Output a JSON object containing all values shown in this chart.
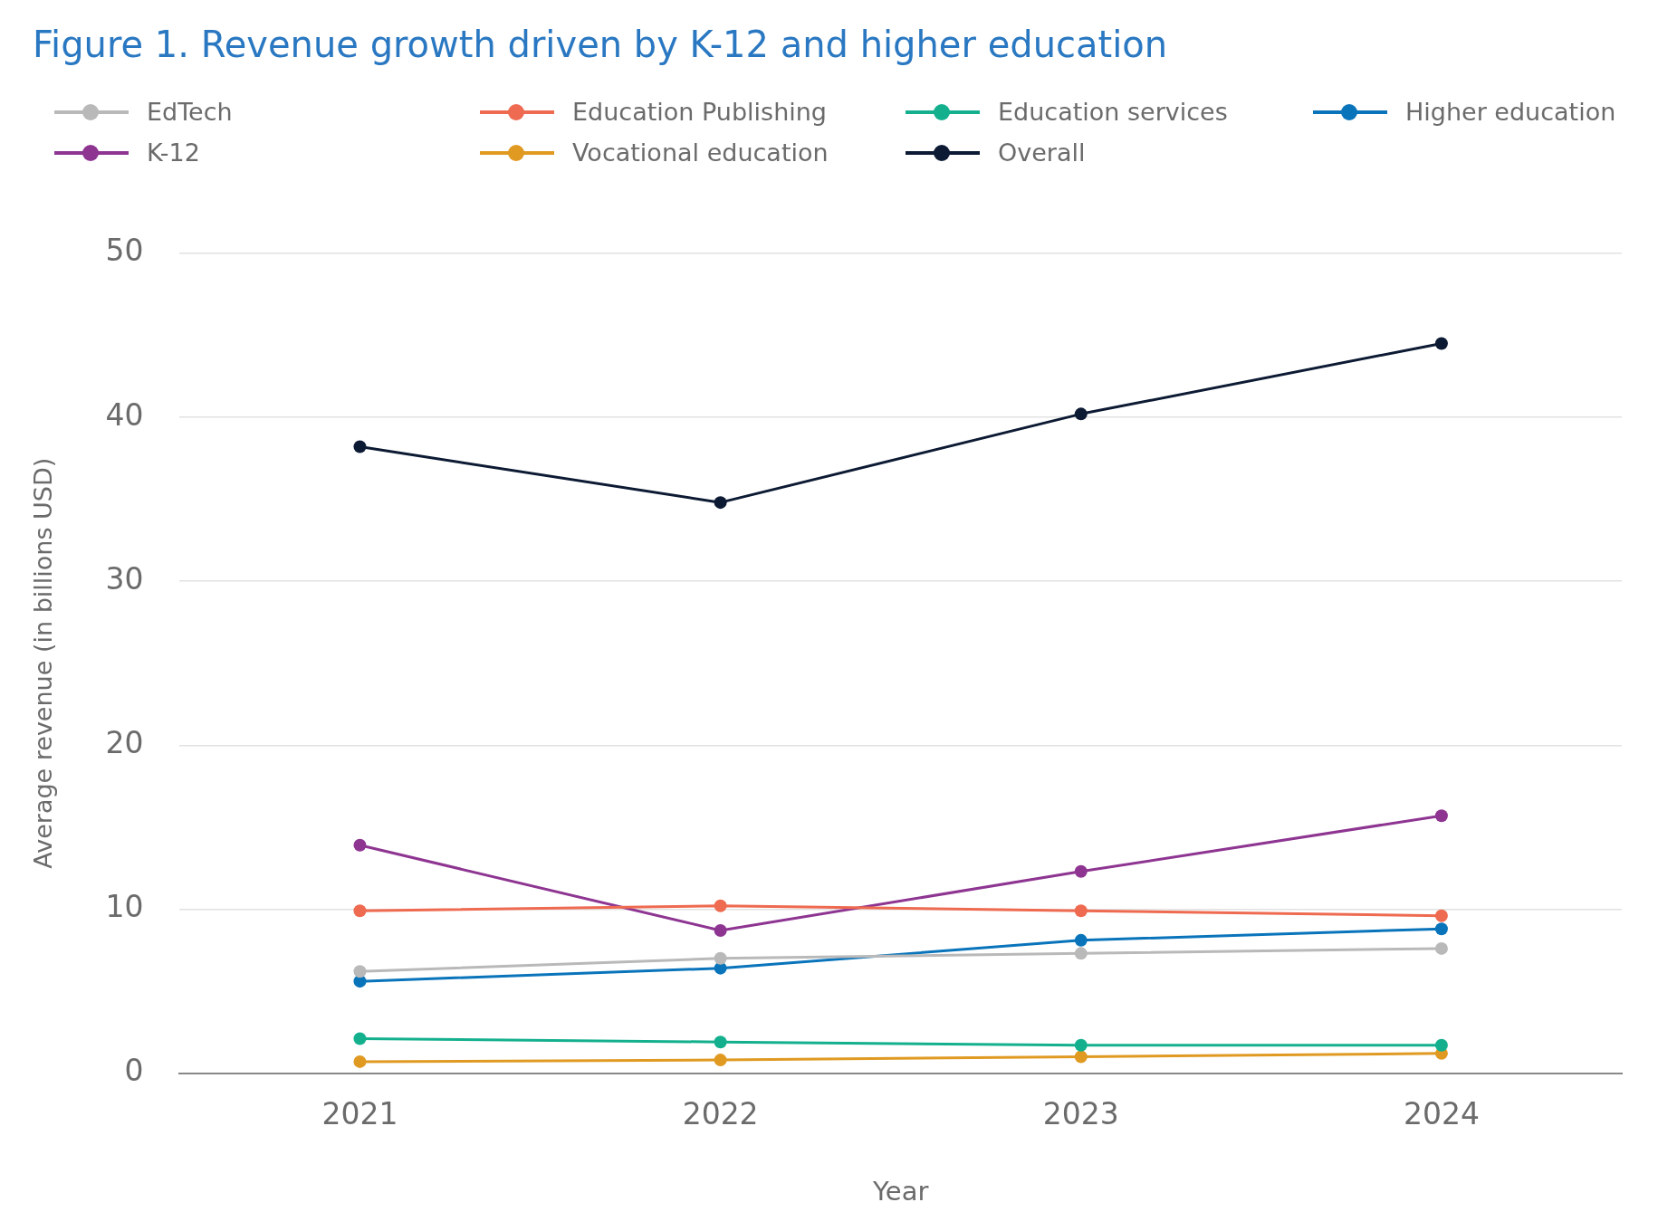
{
  "chart_data": {
    "type": "line",
    "title": "Figure 1. Revenue growth driven by K-12 and higher education",
    "xlabel": "Year",
    "ylabel": "Average revenue (in billions USD)",
    "categories": [
      "2021",
      "2022",
      "2023",
      "2024"
    ],
    "series": [
      {
        "name": "EdTech",
        "color": "#b9b9b9",
        "values": [
          6.2,
          7.0,
          7.3,
          7.6
        ]
      },
      {
        "name": "Education Publishing",
        "color": "#ee6a50",
        "values": [
          9.9,
          10.2,
          9.9,
          9.6
        ]
      },
      {
        "name": "Education services",
        "color": "#14b08e",
        "values": [
          2.1,
          1.9,
          1.7,
          1.7
        ]
      },
      {
        "name": "Higher education",
        "color": "#0a74bb",
        "values": [
          5.6,
          6.4,
          8.1,
          8.8
        ]
      },
      {
        "name": "K-12",
        "color": "#8e3592",
        "values": [
          13.9,
          8.7,
          12.3,
          15.7
        ]
      },
      {
        "name": "Vocational education",
        "color": "#e09a22",
        "values": [
          0.7,
          0.8,
          1.0,
          1.2
        ]
      },
      {
        "name": "Overall",
        "color": "#0c1a33",
        "values": [
          38.2,
          34.8,
          40.2,
          44.5
        ]
      }
    ],
    "ylim": [
      0,
      50
    ],
    "yticks": [
      0,
      10,
      20,
      30,
      40,
      50
    ],
    "grid": "y",
    "legend": "top left",
    "marker": "circle",
    "line_style": "solid"
  }
}
